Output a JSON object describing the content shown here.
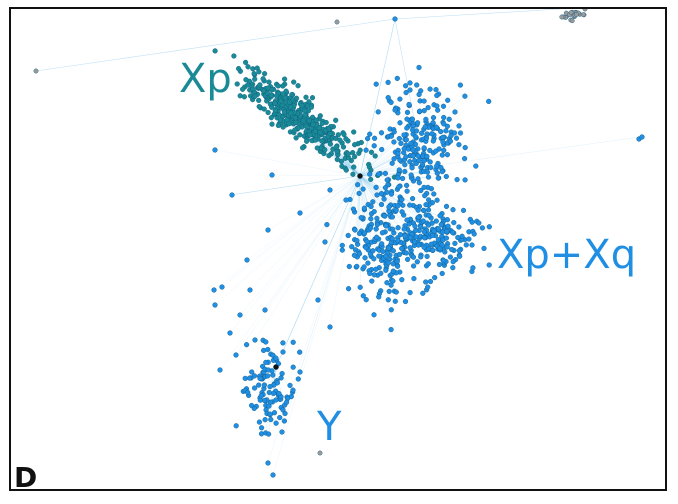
{
  "panel_letter": "D",
  "labels": {
    "xp": "Xp",
    "xpxq": "Xp+Xq",
    "y": "Y"
  },
  "colors": {
    "xp_cluster": "#1a8b96",
    "xp_label": "#1a8b96",
    "blue_cluster": "#1f8ee3",
    "blue_label": "#1f8ee3",
    "hub": "#111111",
    "peripheral": "#9a9a9a",
    "edge": "#7fc4ee",
    "node_outline": "#0d5a80"
  }
}
